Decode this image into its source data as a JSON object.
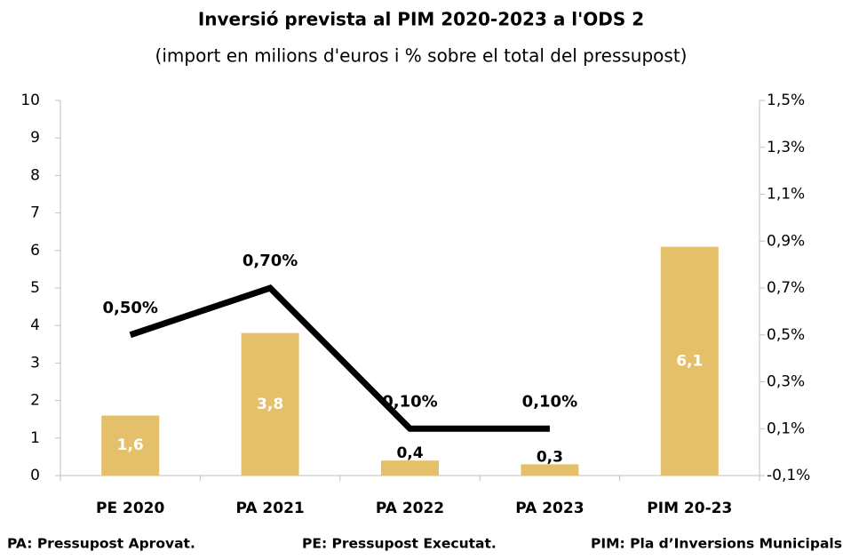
{
  "chart_data": {
    "type": "bar",
    "title": "Inversió prevista al PIM 2020-2023 a l'ODS 2",
    "subtitle": "(import en milions d'euros i % sobre el total del pressupost)",
    "categories": [
      "PE 2020",
      "PA 2021",
      "PA 2022",
      "PA 2023",
      "PIM 20-23"
    ],
    "series": [
      {
        "type": "bar",
        "color": "#e5c06a",
        "values": [
          1.6,
          3.8,
          0.4,
          0.3,
          6.1
        ],
        "value_labels": [
          "1,6",
          "3,8",
          "0,4",
          "0,3",
          "6,1"
        ]
      },
      {
        "type": "line",
        "axis": "y2",
        "color": "#000000",
        "values": [
          0.5,
          0.7,
          0.1,
          0.1,
          null
        ],
        "value_labels": [
          "0,50%",
          "0,70%",
          "0,10%",
          "0,10%",
          null
        ]
      }
    ],
    "ylim": [
      0,
      10
    ],
    "yticks": [
      0,
      1,
      2,
      3,
      4,
      5,
      6,
      7,
      8,
      9,
      10
    ],
    "y2lim": [
      -0.1,
      1.5
    ],
    "y2ticks": [
      {
        "value": -0.1,
        "label": "-0,1%"
      },
      {
        "value": 0.1,
        "label": "0,1%"
      },
      {
        "value": 0.3,
        "label": "0,3%"
      },
      {
        "value": 0.5,
        "label": "0,5%"
      },
      {
        "value": 0.7,
        "label": "0,7%"
      },
      {
        "value": 0.9,
        "label": "0,9%"
      },
      {
        "value": 1.1,
        "label": "1,1%"
      },
      {
        "value": 1.3,
        "label": "1,3%"
      },
      {
        "value": 1.5,
        "label": "1,5%"
      }
    ],
    "annotations": [
      "PA: Pressupost Aprovat.",
      "PE: Pressupost Executat.",
      "PIM: Pla d’Inversions Municipals"
    ]
  }
}
